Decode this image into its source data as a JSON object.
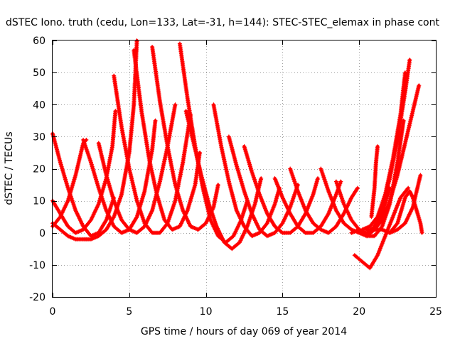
{
  "chart_data": {
    "type": "scatter",
    "title": "dSTEC Iono. truth (cedu, Lon=133, Lat=-31, h=144): STEC-STEC_elemax in phase cont",
    "xlabel": "GPS time / hours of day 069 of year 2014",
    "ylabel": "dSTEC  / TECUs",
    "xlim": [
      0,
      25
    ],
    "ylim": [
      -20,
      60
    ],
    "xticks": [
      0,
      5,
      10,
      15,
      20,
      25
    ],
    "yticks": [
      -20,
      -10,
      0,
      10,
      20,
      30,
      40,
      50,
      60
    ],
    "grid": true,
    "marker": "+",
    "color": "#ff0000",
    "series": [
      {
        "points": [
          [
            0.0,
            31
          ],
          [
            0.5,
            22
          ],
          [
            1.0,
            14
          ],
          [
            1.5,
            7
          ],
          [
            2.0,
            2
          ],
          [
            2.5,
            -1
          ],
          [
            3.0,
            0
          ],
          [
            3.5,
            4
          ],
          [
            4.0,
            11
          ]
        ]
      },
      {
        "points": [
          [
            0.0,
            10
          ],
          [
            0.5,
            6
          ],
          [
            1.0,
            2
          ],
          [
            1.5,
            0
          ],
          [
            2.0,
            1
          ],
          [
            2.5,
            4
          ],
          [
            3.0,
            9
          ],
          [
            3.5,
            17
          ],
          [
            3.9,
            27
          ],
          [
            4.1,
            38
          ]
        ]
      },
      {
        "points": [
          [
            0.0,
            3
          ],
          [
            0.5,
            1
          ],
          [
            1.0,
            -1
          ],
          [
            1.5,
            -2
          ],
          [
            2.0,
            -2
          ],
          [
            2.5,
            -2
          ],
          [
            3.0,
            -1
          ],
          [
            3.5,
            1
          ],
          [
            4.0,
            5
          ],
          [
            4.5,
            12
          ],
          [
            5.0,
            25
          ],
          [
            5.3,
            40
          ],
          [
            5.5,
            60
          ]
        ]
      },
      {
        "points": [
          [
            0.0,
            2
          ],
          [
            0.5,
            5
          ],
          [
            1.0,
            10
          ],
          [
            1.5,
            18
          ],
          [
            2.0,
            28
          ],
          [
            2.2,
            29
          ]
        ]
      },
      {
        "points": [
          [
            2.0,
            29
          ],
          [
            2.5,
            22
          ],
          [
            3.0,
            14
          ],
          [
            3.5,
            7
          ],
          [
            4.0,
            2
          ],
          [
            4.5,
            0
          ],
          [
            5.0,
            1
          ],
          [
            5.5,
            5
          ],
          [
            6.0,
            13
          ],
          [
            6.5,
            26
          ],
          [
            6.7,
            35
          ]
        ]
      },
      {
        "points": [
          [
            3.0,
            28
          ],
          [
            3.5,
            18
          ],
          [
            4.0,
            10
          ],
          [
            4.5,
            4
          ],
          [
            5.0,
            1
          ],
          [
            5.5,
            0
          ],
          [
            6.0,
            2
          ],
          [
            6.5,
            7
          ],
          [
            7.0,
            16
          ],
          [
            7.5,
            27
          ],
          [
            8.0,
            40
          ]
        ]
      },
      {
        "points": [
          [
            4.0,
            49
          ],
          [
            4.5,
            33
          ],
          [
            5.0,
            20
          ],
          [
            5.5,
            10
          ],
          [
            6.0,
            3
          ],
          [
            6.5,
            0
          ],
          [
            7.0,
            0
          ],
          [
            7.5,
            3
          ],
          [
            8.0,
            10
          ],
          [
            8.5,
            22
          ],
          [
            9.0,
            37
          ]
        ]
      },
      {
        "points": [
          [
            5.3,
            57
          ],
          [
            5.8,
            38
          ],
          [
            6.3,
            23
          ],
          [
            6.8,
            12
          ],
          [
            7.3,
            4
          ],
          [
            7.8,
            1
          ],
          [
            8.3,
            2
          ],
          [
            8.8,
            7
          ],
          [
            9.3,
            15
          ],
          [
            9.6,
            25
          ]
        ]
      },
      {
        "points": [
          [
            6.5,
            58
          ],
          [
            7.0,
            41
          ],
          [
            7.5,
            27
          ],
          [
            8.0,
            15
          ],
          [
            8.5,
            7
          ],
          [
            9.0,
            2
          ],
          [
            9.5,
            1
          ],
          [
            10.0,
            3
          ],
          [
            10.5,
            8
          ],
          [
            10.8,
            15
          ]
        ]
      },
      {
        "points": [
          [
            8.3,
            59
          ],
          [
            8.8,
            42
          ],
          [
            9.3,
            27
          ],
          [
            9.8,
            14
          ],
          [
            10.3,
            4
          ],
          [
            10.8,
            -1
          ],
          [
            11.3,
            -3
          ],
          [
            11.8,
            -1
          ],
          [
            12.3,
            4
          ],
          [
            12.7,
            10
          ]
        ]
      },
      {
        "points": [
          [
            8.7,
            38
          ],
          [
            9.2,
            28
          ],
          [
            9.7,
            18
          ],
          [
            10.2,
            9
          ],
          [
            10.7,
            2
          ],
          [
            11.2,
            -3
          ],
          [
            11.7,
            -5
          ],
          [
            12.2,
            -3
          ],
          [
            12.7,
            2
          ],
          [
            13.2,
            9
          ],
          [
            13.6,
            17
          ]
        ]
      },
      {
        "points": [
          [
            10.5,
            40
          ],
          [
            11.0,
            27
          ],
          [
            11.5,
            16
          ],
          [
            12.0,
            7
          ],
          [
            12.5,
            2
          ],
          [
            13.0,
            -1
          ],
          [
            13.5,
            0
          ],
          [
            14.0,
            3
          ],
          [
            14.5,
            9
          ],
          [
            14.8,
            14
          ]
        ]
      },
      {
        "points": [
          [
            11.5,
            30
          ],
          [
            12.0,
            21
          ],
          [
            12.5,
            13
          ],
          [
            13.0,
            6
          ],
          [
            13.5,
            1
          ],
          [
            14.0,
            -1
          ],
          [
            14.5,
            0
          ],
          [
            15.0,
            3
          ],
          [
            15.5,
            8
          ],
          [
            16.0,
            15
          ]
        ]
      },
      {
        "points": [
          [
            12.5,
            27
          ],
          [
            13.0,
            19
          ],
          [
            13.5,
            12
          ],
          [
            14.0,
            6
          ],
          [
            14.5,
            2
          ],
          [
            15.0,
            0
          ],
          [
            15.5,
            0
          ],
          [
            16.0,
            2
          ],
          [
            16.5,
            6
          ],
          [
            17.0,
            12
          ],
          [
            17.3,
            17
          ]
        ]
      },
      {
        "points": [
          [
            14.5,
            17
          ],
          [
            15.0,
            11
          ],
          [
            15.5,
            6
          ],
          [
            16.0,
            2
          ],
          [
            16.5,
            0
          ],
          [
            17.0,
            0
          ],
          [
            17.5,
            2
          ],
          [
            18.0,
            6
          ],
          [
            18.5,
            12
          ],
          [
            18.8,
            16
          ]
        ]
      },
      {
        "points": [
          [
            15.5,
            20
          ],
          [
            16.0,
            13
          ],
          [
            16.5,
            7
          ],
          [
            17.0,
            3
          ],
          [
            17.5,
            1
          ],
          [
            18.0,
            0
          ],
          [
            18.5,
            2
          ],
          [
            19.0,
            6
          ],
          [
            19.5,
            11
          ],
          [
            19.9,
            14
          ]
        ]
      },
      {
        "points": [
          [
            17.5,
            20
          ],
          [
            18.0,
            13
          ],
          [
            18.5,
            7
          ],
          [
            19.0,
            3
          ],
          [
            19.5,
            1
          ],
          [
            20.0,
            0
          ],
          [
            20.5,
            -1
          ],
          [
            21.0,
            1
          ],
          [
            21.5,
            6
          ],
          [
            22.0,
            14
          ]
        ]
      },
      {
        "points": [
          [
            18.5,
            16
          ],
          [
            19.0,
            9
          ],
          [
            19.5,
            4
          ],
          [
            20.0,
            1
          ],
          [
            20.5,
            -1
          ],
          [
            21.0,
            -1
          ],
          [
            21.5,
            2
          ],
          [
            22.0,
            9
          ],
          [
            22.5,
            22
          ],
          [
            22.9,
            35
          ]
        ]
      },
      {
        "points": [
          [
            19.7,
            -7
          ],
          [
            20.2,
            -9
          ],
          [
            20.7,
            -11
          ],
          [
            21.2,
            -7
          ],
          [
            21.7,
            -1
          ],
          [
            22.2,
            5
          ],
          [
            22.7,
            11
          ],
          [
            23.2,
            14
          ]
        ]
      },
      {
        "points": [
          [
            19.5,
            0
          ],
          [
            20.0,
            1
          ],
          [
            20.5,
            0
          ],
          [
            21.0,
            2
          ],
          [
            21.5,
            8
          ],
          [
            22.0,
            17
          ],
          [
            22.5,
            29
          ],
          [
            23.0,
            44
          ],
          [
            23.3,
            54
          ]
        ]
      },
      {
        "points": [
          [
            20.2,
            1
          ],
          [
            20.7,
            2
          ],
          [
            21.2,
            5
          ],
          [
            21.7,
            12
          ],
          [
            22.2,
            23
          ],
          [
            22.7,
            37
          ],
          [
            23.0,
            50
          ]
        ]
      },
      {
        "points": [
          [
            20.5,
            1
          ],
          [
            21.0,
            1
          ],
          [
            21.5,
            4
          ],
          [
            22.0,
            10
          ],
          [
            22.5,
            18
          ],
          [
            23.0,
            28
          ],
          [
            23.5,
            38
          ],
          [
            23.9,
            46
          ]
        ]
      },
      {
        "points": [
          [
            20.8,
            5
          ],
          [
            21.0,
            14
          ],
          [
            21.1,
            22
          ],
          [
            21.2,
            27
          ]
        ]
      },
      {
        "points": [
          [
            21.0,
            1
          ],
          [
            21.5,
            1
          ],
          [
            22.0,
            0
          ],
          [
            22.5,
            1
          ],
          [
            23.0,
            3
          ],
          [
            23.5,
            8
          ],
          [
            24.0,
            18
          ]
        ]
      },
      {
        "points": [
          [
            22.0,
            0
          ],
          [
            22.5,
            3
          ],
          [
            23.0,
            11
          ],
          [
            23.3,
            13
          ],
          [
            23.5,
            11
          ],
          [
            24.0,
            3
          ],
          [
            24.1,
            0
          ]
        ]
      }
    ]
  }
}
